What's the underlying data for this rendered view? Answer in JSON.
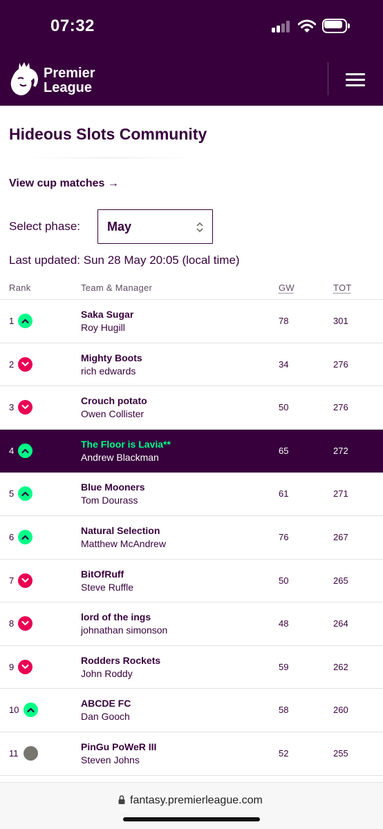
{
  "status_bar": {
    "time": "07:32"
  },
  "header": {
    "logo_line1": "Premier",
    "logo_line2": "League"
  },
  "page": {
    "title": "Hideous Slots Community",
    "cup_link": "View cup matches →",
    "phase_label": "Select phase:",
    "phase_value": "May",
    "last_updated": "Last updated: Sun 28 May 20:05 (local time)"
  },
  "table": {
    "headers": {
      "rank": "Rank",
      "team": "Team & Manager",
      "gw": "GW",
      "tot": "TOT"
    },
    "rows": [
      {
        "rank": "1",
        "movement": "up",
        "team": "Saka Sugar",
        "manager": "Roy Hugill",
        "gw": "78",
        "tot": "301"
      },
      {
        "rank": "2",
        "movement": "down",
        "team": "Mighty Boots",
        "manager": "rich edwards",
        "gw": "34",
        "tot": "276"
      },
      {
        "rank": "3",
        "movement": "down",
        "team": "Crouch potato",
        "manager": "Owen Collister",
        "gw": "50",
        "tot": "276"
      },
      {
        "rank": "4",
        "movement": "up",
        "team": "The Floor is Lavia**",
        "manager": "Andrew Blackman",
        "gw": "65",
        "tot": "272",
        "highlighted": true
      },
      {
        "rank": "5",
        "movement": "up",
        "team": "Blue Mooners",
        "manager": "Tom Dourass",
        "gw": "61",
        "tot": "271"
      },
      {
        "rank": "6",
        "movement": "up",
        "team": "Natural Selection",
        "manager": "Matthew McAndrew",
        "gw": "76",
        "tot": "267"
      },
      {
        "rank": "7",
        "movement": "down",
        "team": "BitOfRuff",
        "manager": "Steve Ruffle",
        "gw": "50",
        "tot": "265"
      },
      {
        "rank": "8",
        "movement": "down",
        "team": "lord of the ings",
        "manager": "johnathan simonson",
        "gw": "48",
        "tot": "264"
      },
      {
        "rank": "9",
        "movement": "down",
        "team": "Rodders Rockets",
        "manager": "John Roddy",
        "gw": "59",
        "tot": "262"
      },
      {
        "rank": "10",
        "movement": "up",
        "team": "ABCDE FC",
        "manager": "Dan Gooch",
        "gw": "58",
        "tot": "260"
      },
      {
        "rank": "11",
        "movement": "same",
        "team": "PinGu PoWeR III",
        "manager": "Steven Johns",
        "gw": "52",
        "tot": "255"
      }
    ]
  },
  "browser": {
    "url": "fantasy.premierleague.com"
  },
  "colors": {
    "brand": "#37003c",
    "up": "#00ff87",
    "down": "#e90052",
    "same": "#76766f"
  },
  "icons": {
    "signal": "cellular-signal-icon",
    "wifi": "wifi-icon",
    "battery": "battery-icon",
    "logo": "premier-league-lion-icon",
    "menu": "hamburger-menu-icon",
    "lock": "lock-icon"
  }
}
